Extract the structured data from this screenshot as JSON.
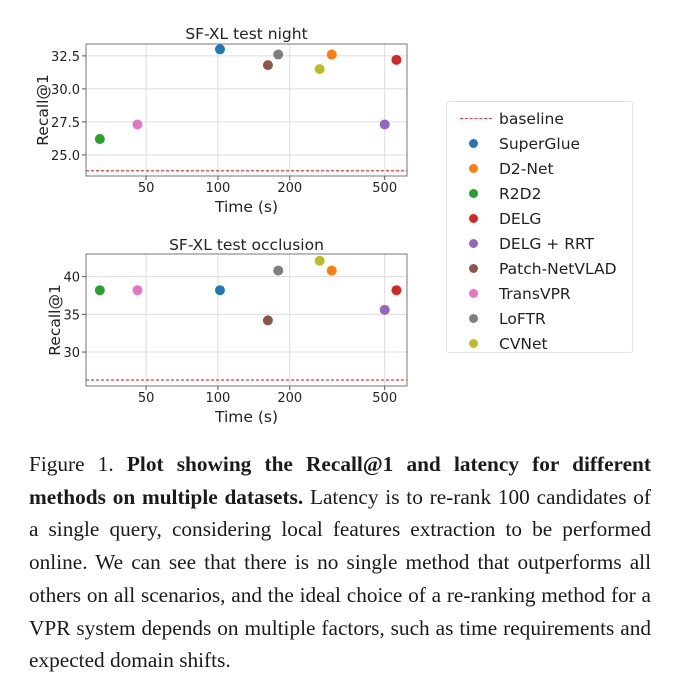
{
  "chart_data": [
    {
      "type": "scatter",
      "title": "SF-XL test night",
      "xlabel": "Time (s)",
      "ylabel": "Recall@1",
      "xscale": "log",
      "xlim": [
        28,
        620
      ],
      "ylim": [
        23.4,
        33.4
      ],
      "xticks": [
        50,
        100,
        200,
        500
      ],
      "xtick_labels": [
        "50",
        "100",
        "200",
        "500"
      ],
      "yticks": [
        25.0,
        27.5,
        30.0,
        32.5
      ],
      "ytick_labels": [
        "25.0",
        "27.5",
        "30.0",
        "32.5"
      ],
      "grid": true,
      "baseline": 23.8,
      "points": [
        {
          "method": "SuperGlue",
          "time": 102,
          "recall": 33.0
        },
        {
          "method": "D2-Net",
          "time": 300,
          "recall": 32.6
        },
        {
          "method": "R2D2",
          "time": 32,
          "recall": 26.2
        },
        {
          "method": "DELG",
          "time": 560,
          "recall": 32.2
        },
        {
          "method": "DELG + RRT",
          "time": 500,
          "recall": 27.3
        },
        {
          "method": "Patch-NetVLAD",
          "time": 162,
          "recall": 31.8
        },
        {
          "method": "TransVPR",
          "time": 46,
          "recall": 27.3
        },
        {
          "method": "LoFTR",
          "time": 179,
          "recall": 32.6
        },
        {
          "method": "CVNet",
          "time": 267,
          "recall": 31.5
        }
      ]
    },
    {
      "type": "scatter",
      "title": "SF-XL test occlusion",
      "xlabel": "Time (s)",
      "ylabel": "Recall@1",
      "xscale": "log",
      "xlim": [
        28,
        620
      ],
      "ylim": [
        25.5,
        43.0
      ],
      "xticks": [
        50,
        100,
        200,
        500
      ],
      "xtick_labels": [
        "50",
        "100",
        "200",
        "500"
      ],
      "yticks": [
        30,
        35,
        40
      ],
      "ytick_labels": [
        "30",
        "35",
        "40"
      ],
      "grid": true,
      "baseline": 26.3,
      "points": [
        {
          "method": "SuperGlue",
          "time": 102,
          "recall": 38.2
        },
        {
          "method": "D2-Net",
          "time": 300,
          "recall": 40.8
        },
        {
          "method": "R2D2",
          "time": 32,
          "recall": 38.2
        },
        {
          "method": "DELG",
          "time": 560,
          "recall": 38.2
        },
        {
          "method": "DELG + RRT",
          "time": 500,
          "recall": 35.6
        },
        {
          "method": "Patch-NetVLAD",
          "time": 162,
          "recall": 34.2
        },
        {
          "method": "TransVPR",
          "time": 46,
          "recall": 38.2
        },
        {
          "method": "LoFTR",
          "time": 179,
          "recall": 40.8
        },
        {
          "method": "CVNet",
          "time": 267,
          "recall": 42.1
        }
      ]
    }
  ],
  "legend": {
    "baseline_label": "baseline",
    "baseline_color": "#e53935",
    "items": [
      {
        "label": "SuperGlue",
        "color": "#1f77b4"
      },
      {
        "label": "D2-Net",
        "color": "#ff7f0e"
      },
      {
        "label": "R2D2",
        "color": "#2ca02c"
      },
      {
        "label": "DELG",
        "color": "#d62728"
      },
      {
        "label": "DELG + RRT",
        "color": "#9467bd"
      },
      {
        "label": "Patch-NetVLAD",
        "color": "#8c564b"
      },
      {
        "label": "TransVPR",
        "color": "#e377c2"
      },
      {
        "label": "LoFTR",
        "color": "#7f7f7f"
      },
      {
        "label": "CVNet",
        "color": "#bcbd22"
      }
    ]
  },
  "caption": {
    "label": "Figure 1.",
    "bold": "Plot showing the Recall@1 and latency for different methods on multiple datasets.",
    "text": "Latency is to re-rank 100 candidates of a single query, considering local features extraction to be performed online. We can see that there is no single method that outperforms all others on all scenarios, and the ideal choice of a re-ranking method for a VPR system depends on multiple factors, such as time requirements and expected domain shifts."
  }
}
